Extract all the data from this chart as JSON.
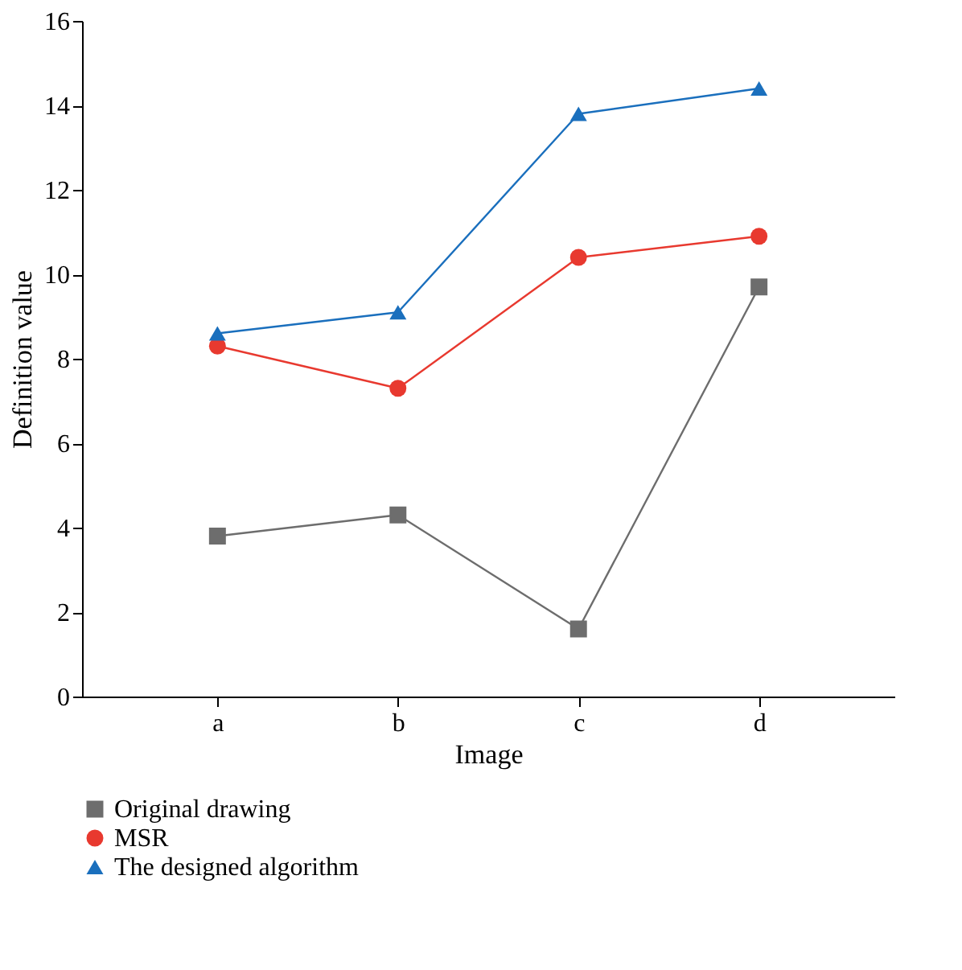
{
  "chart_data": {
    "type": "line",
    "xlabel": "Image",
    "ylabel": "Definition value",
    "categories": [
      "a",
      "b",
      "c",
      "d"
    ],
    "ylim": [
      0,
      16
    ],
    "yticks": [
      0,
      2,
      4,
      6,
      8,
      10,
      12,
      14,
      16
    ],
    "grid": false,
    "legend": "bottom",
    "line_style": "solid",
    "series": [
      {
        "name": "Original drawing",
        "color": "#6d6d6d",
        "marker": "square",
        "values": [
          3.8,
          4.3,
          1.6,
          9.7
        ]
      },
      {
        "name": "MSR",
        "color": "#e8392f",
        "marker": "circle",
        "values": [
          8.3,
          7.3,
          10.4,
          10.9
        ]
      },
      {
        "name": "The designed algorithm",
        "color": "#1a6fbd",
        "marker": "triangle",
        "values": [
          8.6,
          9.1,
          13.8,
          14.4
        ]
      }
    ]
  }
}
